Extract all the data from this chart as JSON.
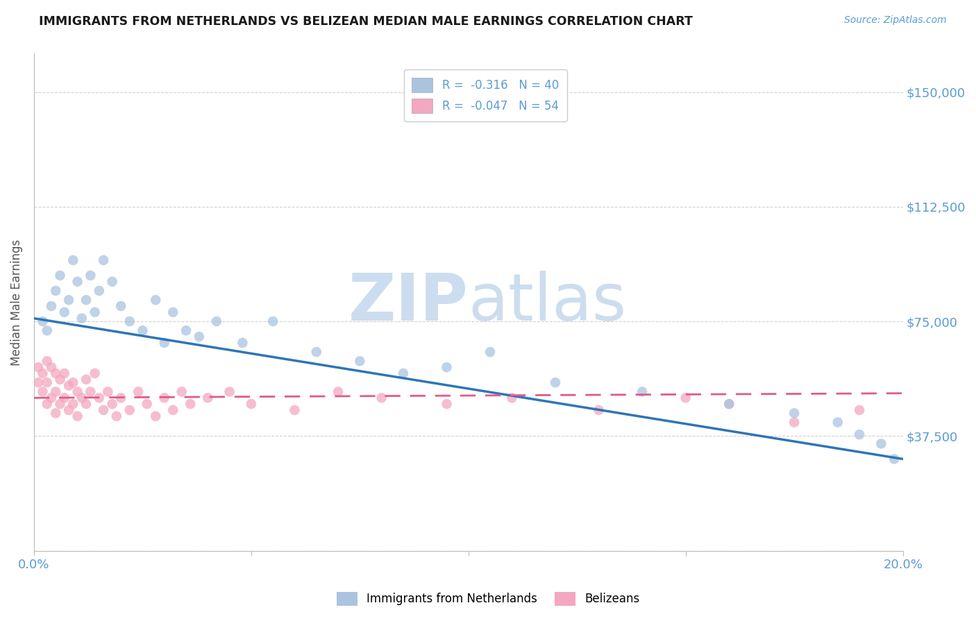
{
  "title": "IMMIGRANTS FROM NETHERLANDS VS BELIZEAN MEDIAN MALE EARNINGS CORRELATION CHART",
  "source_text": "Source: ZipAtlas.com",
  "ylabel": "Median Male Earnings",
  "xlim": [
    0.0,
    0.2
  ],
  "ylim": [
    0,
    162500
  ],
  "yticks": [
    0,
    37500,
    75000,
    112500,
    150000
  ],
  "ytick_labels": [
    "",
    "$37,500",
    "$75,000",
    "$112,500",
    "$150,000"
  ],
  "xticks": [
    0.0,
    0.05,
    0.1,
    0.15,
    0.2
  ],
  "xtick_labels": [
    "0.0%",
    "",
    "",
    "",
    "20.0%"
  ],
  "blue_label": "Immigrants from Netherlands",
  "pink_label": "Belizeans",
  "legend_R_blue": "R =  -0.316   N = 40",
  "legend_R_pink": "R =  -0.047   N = 54",
  "title_color": "#1a1a1a",
  "axis_color": "#5b9bd5",
  "blue_dot_color": "#aac4e0",
  "blue_line_color": "#2e75b6",
  "pink_dot_color": "#f4a7c0",
  "pink_line_color": "#e05a8a",
  "grid_color": "#d0d0d0",
  "watermark_color": "#ccddef",
  "blue_x": [
    0.002,
    0.003,
    0.004,
    0.005,
    0.006,
    0.007,
    0.008,
    0.009,
    0.01,
    0.011,
    0.012,
    0.013,
    0.014,
    0.015,
    0.016,
    0.018,
    0.02,
    0.022,
    0.025,
    0.028,
    0.03,
    0.032,
    0.035,
    0.038,
    0.042,
    0.048,
    0.055,
    0.065,
    0.075,
    0.085,
    0.095,
    0.105,
    0.12,
    0.14,
    0.16,
    0.175,
    0.185,
    0.19,
    0.195,
    0.198
  ],
  "blue_y": [
    75000,
    72000,
    80000,
    85000,
    90000,
    78000,
    82000,
    95000,
    88000,
    76000,
    82000,
    90000,
    78000,
    85000,
    95000,
    88000,
    80000,
    75000,
    72000,
    82000,
    68000,
    78000,
    72000,
    70000,
    75000,
    68000,
    75000,
    65000,
    62000,
    58000,
    60000,
    65000,
    55000,
    52000,
    48000,
    45000,
    42000,
    38000,
    35000,
    30000
  ],
  "pink_x": [
    0.001,
    0.001,
    0.002,
    0.002,
    0.003,
    0.003,
    0.003,
    0.004,
    0.004,
    0.005,
    0.005,
    0.005,
    0.006,
    0.006,
    0.007,
    0.007,
    0.008,
    0.008,
    0.009,
    0.009,
    0.01,
    0.01,
    0.011,
    0.012,
    0.012,
    0.013,
    0.014,
    0.015,
    0.016,
    0.017,
    0.018,
    0.019,
    0.02,
    0.022,
    0.024,
    0.026,
    0.028,
    0.03,
    0.032,
    0.034,
    0.036,
    0.04,
    0.045,
    0.05,
    0.06,
    0.07,
    0.08,
    0.095,
    0.11,
    0.13,
    0.15,
    0.16,
    0.175,
    0.19
  ],
  "pink_y": [
    60000,
    55000,
    58000,
    52000,
    62000,
    55000,
    48000,
    60000,
    50000,
    58000,
    52000,
    45000,
    56000,
    48000,
    58000,
    50000,
    54000,
    46000,
    55000,
    48000,
    52000,
    44000,
    50000,
    56000,
    48000,
    52000,
    58000,
    50000,
    46000,
    52000,
    48000,
    44000,
    50000,
    46000,
    52000,
    48000,
    44000,
    50000,
    46000,
    52000,
    48000,
    50000,
    52000,
    48000,
    46000,
    52000,
    50000,
    48000,
    50000,
    46000,
    50000,
    48000,
    42000,
    46000
  ],
  "blue_line_x0": 0.0,
  "blue_line_y0": 76000,
  "blue_line_x1": 0.2,
  "blue_line_y1": 30000,
  "pink_line_x0": 0.0,
  "pink_line_y0": 50000,
  "pink_line_x1": 0.2,
  "pink_line_y1": 51500
}
